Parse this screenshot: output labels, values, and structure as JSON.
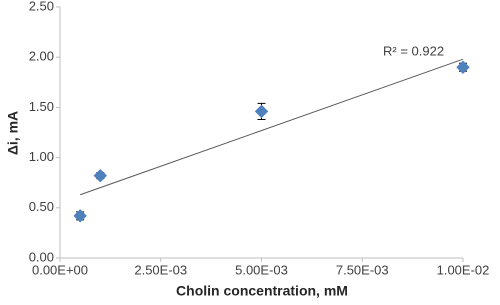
{
  "chart_data": {
    "type": "scatter",
    "xlabel": "Cholin concentration, mM",
    "ylabel": "Δi, mA",
    "series": [
      {
        "color": "#4f81bd",
        "x": [
          0.0005,
          0.001,
          0.005,
          0.01
        ],
        "values": [
          0.42,
          0.82,
          1.46,
          1.9
        ],
        "errors": [
          0.04,
          0.03,
          0.08,
          0.04
        ]
      }
    ],
    "trendline": {
      "color": "#595959",
      "x": [
        0.0005,
        0.01
      ],
      "values": [
        0.63,
        1.98
      ]
    },
    "annotation": "R² = 0.922",
    "xlim": [
      0,
      0.01
    ],
    "xticks": [
      {
        "value": 0,
        "label": "0.00E+00"
      },
      {
        "value": 0.0025,
        "label": "2.50E-03"
      },
      {
        "value": 0.005,
        "label": "5.00E-03"
      },
      {
        "value": 0.0075,
        "label": "7.50E-03"
      },
      {
        "value": 0.01,
        "label": "1.00E-02"
      }
    ],
    "ylim": [
      0,
      2.5
    ],
    "yticks": [
      {
        "value": 0,
        "label": "0.00"
      },
      {
        "value": 0.5,
        "label": "0.50"
      },
      {
        "value": 1,
        "label": "1.00"
      },
      {
        "value": 1.5,
        "label": "1.50"
      },
      {
        "value": 2,
        "label": "2.00"
      },
      {
        "value": 2.5,
        "label": "2.50"
      }
    ],
    "grid": false
  }
}
